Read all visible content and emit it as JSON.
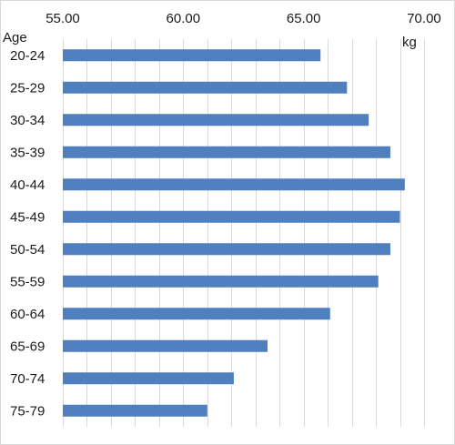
{
  "chart_data": {
    "type": "bar",
    "orientation": "horizontal",
    "xaxis_position": "top",
    "title": "",
    "ylabel": "Age",
    "xlabel": "kg",
    "xlim": [
      55.0,
      70.0
    ],
    "xticks": [
      "55.00",
      "60.00",
      "65.00",
      "70.00"
    ],
    "grid": true,
    "categories": [
      "20-24",
      "25-29",
      "30-34",
      "35-39",
      "40-44",
      "45-49",
      "50-54",
      "55-59",
      "60-64",
      "65-69",
      "70-74",
      "75-79"
    ],
    "values": [
      65.7,
      66.8,
      67.7,
      68.6,
      69.2,
      69.0,
      68.6,
      68.1,
      66.1,
      63.5,
      62.1,
      61.0
    ],
    "colors": {
      "bar": "#4f7fbf",
      "grid": "#d9d9d9",
      "text": "#1a1a1a"
    }
  }
}
